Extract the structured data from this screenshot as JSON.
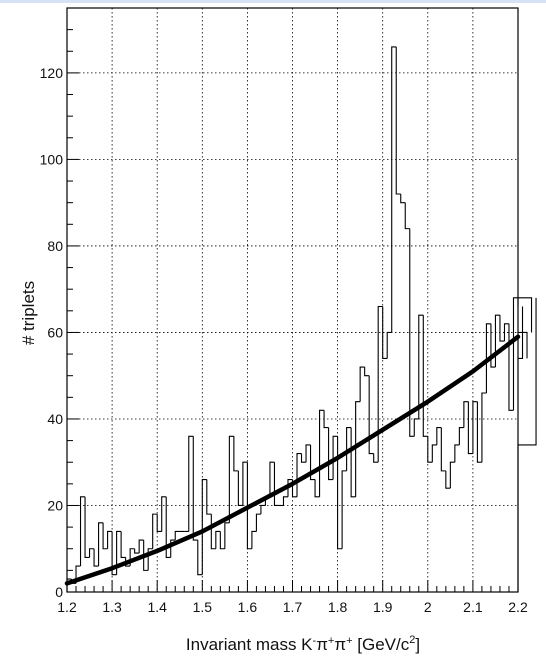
{
  "chart_data": {
    "type": "histogram",
    "xlabel_parts": {
      "main": "Invariant mass K",
      "k_sup": "-",
      "pi": "π",
      "pi1_sup": "+",
      "pi2": "π",
      "pi2_sup": "+",
      "unit_open": " [GeV/c",
      "unit_sup": "2",
      "unit_close": "]"
    },
    "ylabel": "# triplets",
    "xlim": [
      1.2,
      2.2
    ],
    "ylim": [
      0,
      135
    ],
    "x_ticks": [
      1.2,
      1.3,
      1.4,
      1.5,
      1.6,
      1.7,
      1.8,
      1.9,
      2.0,
      2.1,
      2.2
    ],
    "x_tick_labels": [
      "1.2",
      "1.3",
      "1.4",
      "1.5",
      "1.6",
      "1.7",
      "1.8",
      "1.9",
      "2",
      "2.1",
      "2.2"
    ],
    "y_ticks": [
      0,
      20,
      40,
      60,
      80,
      100,
      120
    ],
    "y_tick_labels": [
      "0",
      "20",
      "40",
      "60",
      "80",
      "100",
      "120"
    ],
    "grid": true,
    "bin_width": 0.01,
    "bin_start": 1.2,
    "bin_values": [
      3,
      2,
      6,
      22,
      8,
      10,
      6,
      16,
      10,
      14,
      4,
      14,
      8,
      6,
      10,
      9,
      12,
      5,
      10,
      18,
      14,
      22,
      8,
      12,
      14,
      14,
      14,
      36,
      12,
      4,
      26,
      18,
      10,
      14,
      10,
      16,
      36,
      28,
      20,
      30,
      10,
      14,
      18,
      20,
      22,
      30,
      20,
      20,
      22,
      26,
      22,
      32,
      30,
      34,
      26,
      22,
      42,
      38,
      26,
      36,
      10,
      28,
      38,
      22,
      44,
      52,
      50,
      32,
      30,
      66,
      54,
      60,
      126,
      92,
      90,
      84,
      36,
      40,
      64,
      36,
      30,
      34,
      38,
      28,
      24,
      30,
      34,
      38,
      44,
      32,
      44,
      30,
      46,
      62,
      52,
      64,
      58,
      62,
      42,
      68,
      66,
      54,
      60,
      68,
      34
    ],
    "fit": {
      "label": "fit",
      "x": [
        1.2,
        1.3,
        1.4,
        1.5,
        1.6,
        1.7,
        1.8,
        1.9,
        2.0,
        2.1,
        2.2
      ],
      "y": [
        2,
        5.5,
        9.5,
        14,
        19.5,
        25,
        31,
        37.5,
        44,
        51,
        59
      ]
    }
  }
}
